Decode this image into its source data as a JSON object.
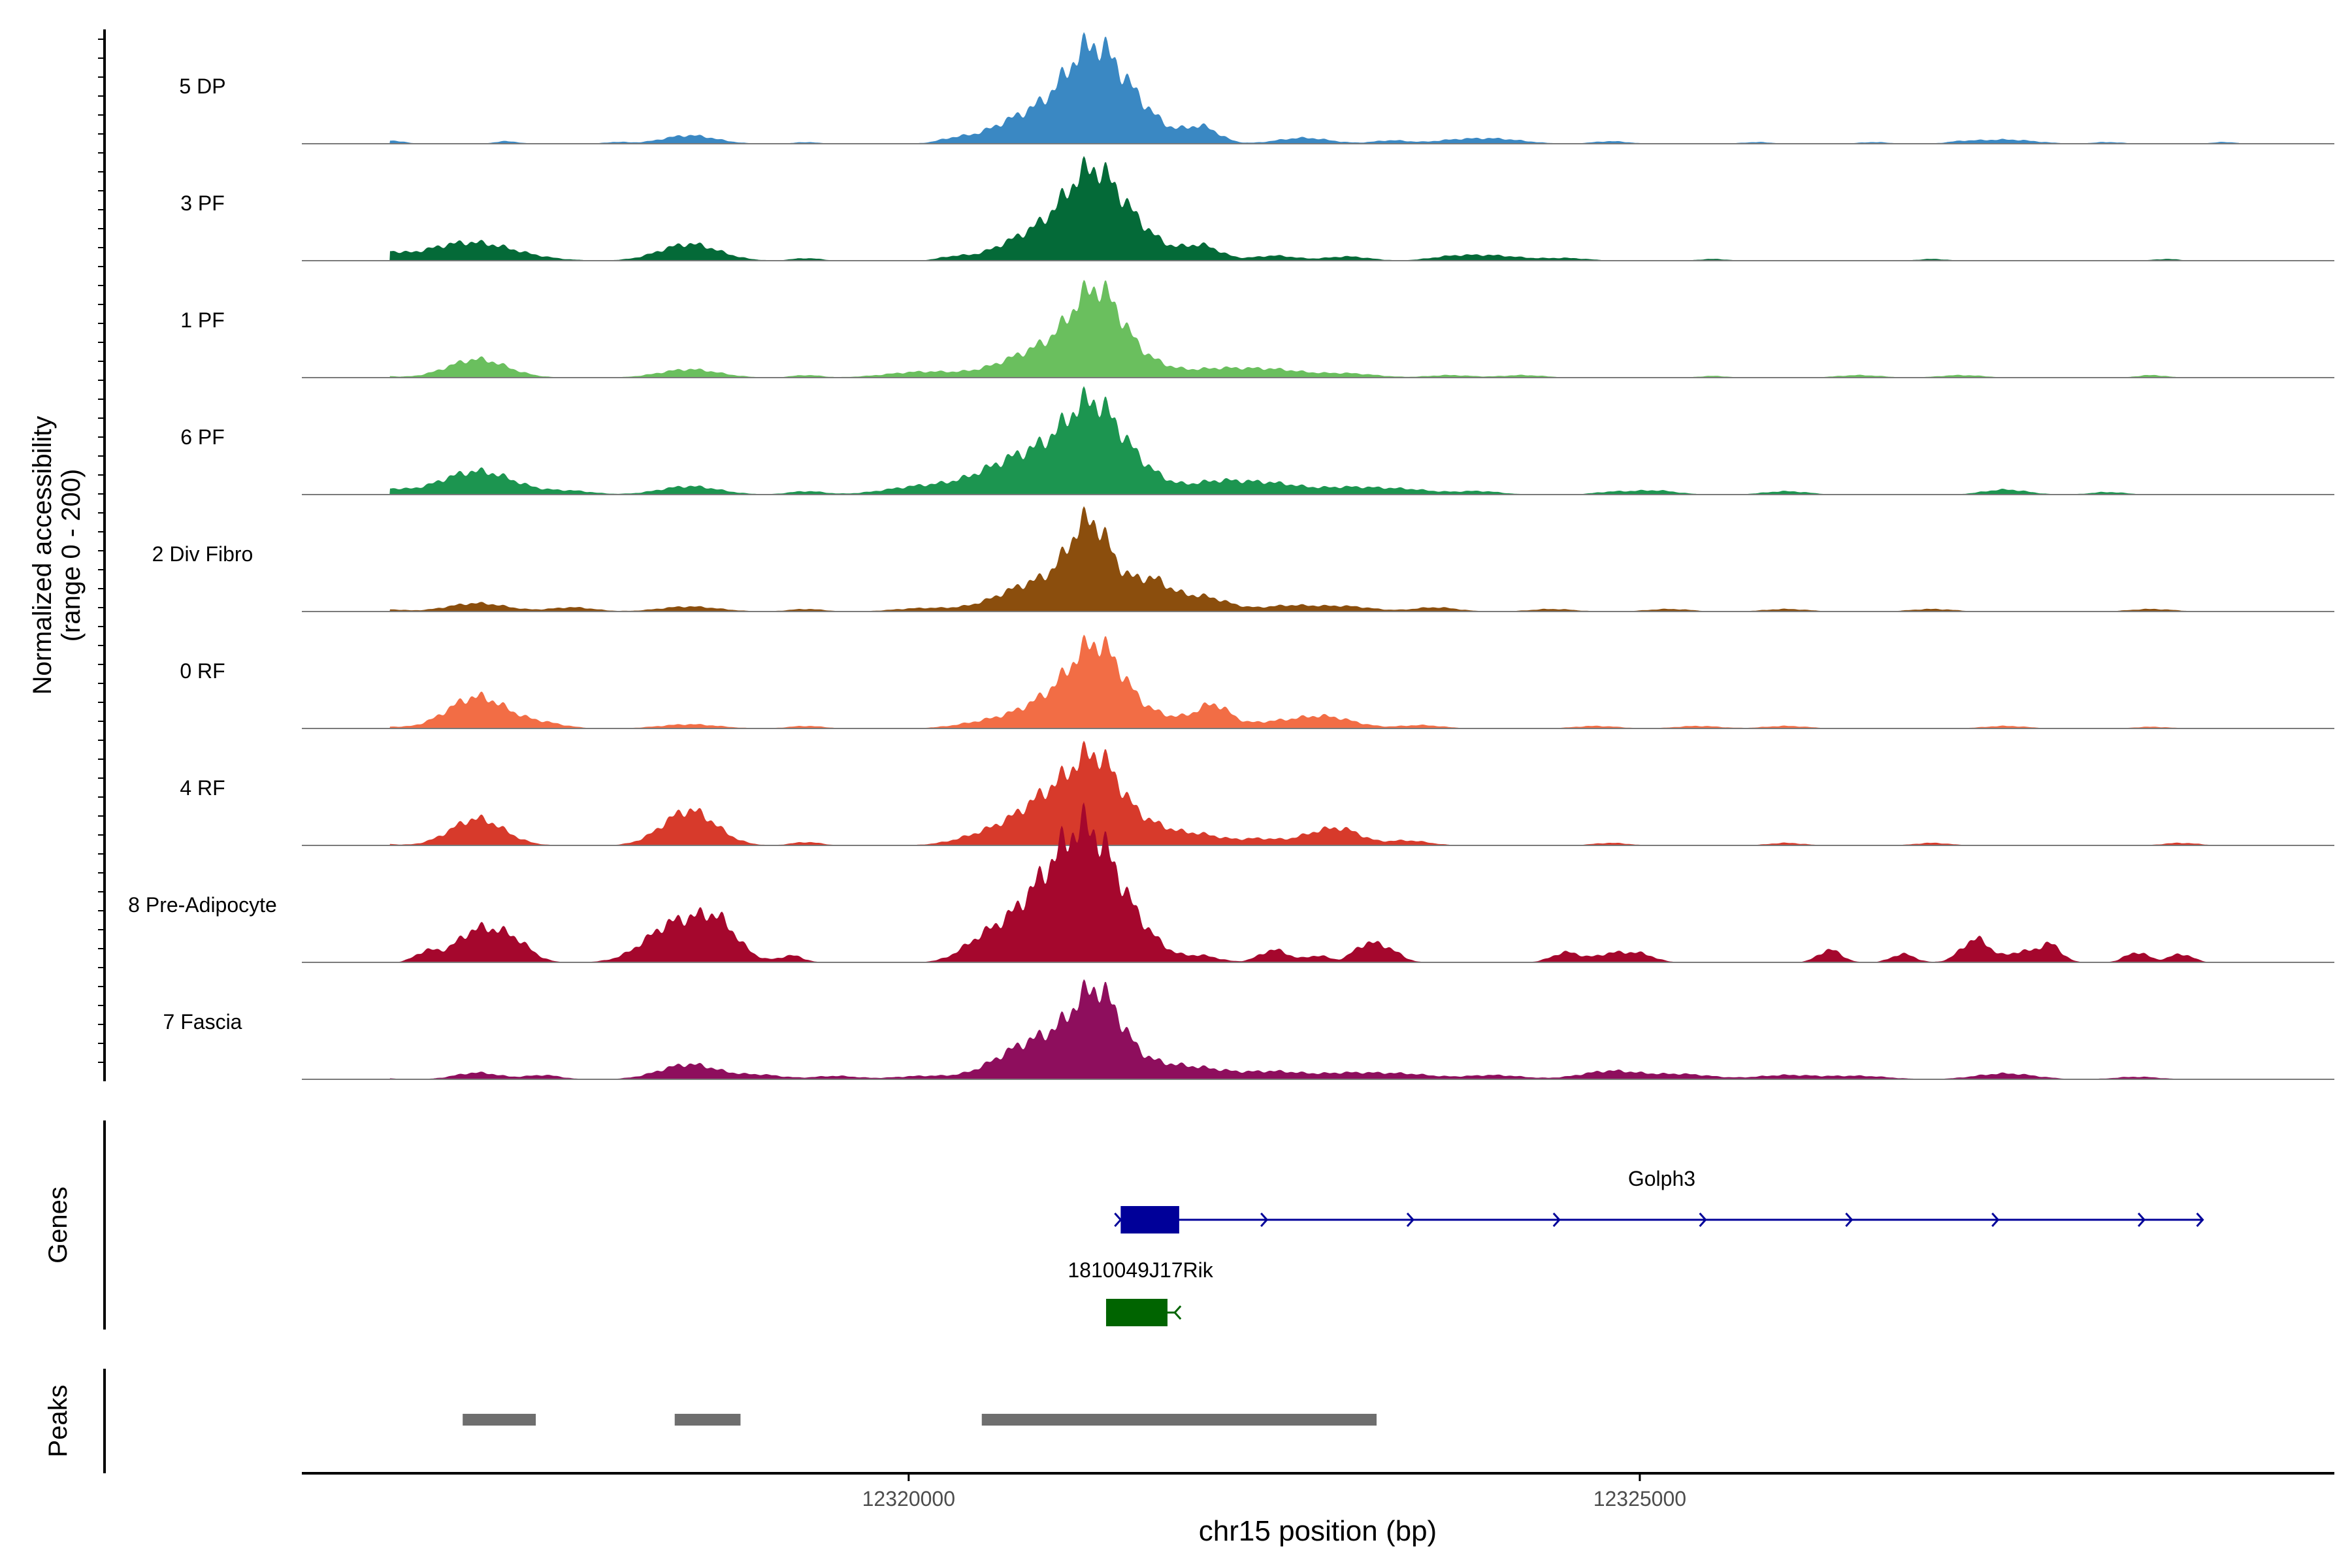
{
  "chart_data": {
    "type": "area",
    "title": "",
    "coverage_ylabel": "Normalized accessibility",
    "coverage_range": "(range 0 - 200)",
    "y_range": [
      0,
      200
    ],
    "xlabel": "chr15 position (bp)",
    "x_range": [
      12315850,
      12329750
    ],
    "x_ticks": [
      12320000,
      12325000
    ],
    "x_tick_labels": [
      "12320000",
      "12325000"
    ],
    "tracks": [
      {
        "name": "5 DP",
        "color": "#3A88C3",
        "peaks": [
          [
            12316450,
            4,
            90
          ],
          [
            12317250,
            3,
            80
          ],
          [
            12318000,
            2,
            80
          ],
          [
            12318500,
            10,
            180
          ],
          [
            12319300,
            2,
            80
          ],
          [
            12320300,
            4,
            100
          ],
          [
            12320700,
            7,
            220
          ],
          [
            12321000,
            38,
            300
          ],
          [
            12321280,
            90,
            180
          ],
          [
            12321600,
            28,
            160
          ],
          [
            12322000,
            20,
            120
          ],
          [
            12322700,
            7,
            180
          ],
          [
            12323700,
            3,
            150
          ],
          [
            12324000,
            6,
            200
          ],
          [
            12323300,
            4,
            120
          ],
          [
            12324800,
            3,
            120
          ],
          [
            12325800,
            2,
            100
          ],
          [
            12326600,
            2,
            100
          ],
          [
            12327200,
            2,
            100
          ],
          [
            12327500,
            5,
            200
          ],
          [
            12328200,
            2,
            100
          ],
          [
            12329000,
            2,
            90
          ]
        ]
      },
      {
        "name": "3 PF",
        "color": "#046A38",
        "peaks": [
          [
            12316350,
            12,
            120
          ],
          [
            12317000,
            22,
            300
          ],
          [
            12318500,
            20,
            200
          ],
          [
            12319300,
            3,
            100
          ],
          [
            12320300,
            4,
            100
          ],
          [
            12320700,
            8,
            200
          ],
          [
            12321000,
            35,
            250
          ],
          [
            12321280,
            88,
            180
          ],
          [
            12321600,
            25,
            160
          ],
          [
            12322000,
            18,
            130
          ],
          [
            12322500,
            6,
            150
          ],
          [
            12323000,
            5,
            150
          ],
          [
            12323700,
            4,
            150
          ],
          [
            12324000,
            6,
            200
          ],
          [
            12324500,
            3,
            150
          ],
          [
            12325500,
            2,
            100
          ],
          [
            12327000,
            2,
            100
          ],
          [
            12328600,
            2,
            90
          ]
        ]
      },
      {
        "name": "1 PF",
        "color": "#6ABF5E",
        "peaks": [
          [
            12316350,
            3,
            100
          ],
          [
            12317050,
            22,
            200
          ],
          [
            12318500,
            10,
            200
          ],
          [
            12319300,
            3,
            100
          ],
          [
            12320100,
            7,
            250
          ],
          [
            12320700,
            8,
            220
          ],
          [
            12321000,
            32,
            250
          ],
          [
            12321300,
            90,
            170
          ],
          [
            12321650,
            14,
            160
          ],
          [
            12322100,
            10,
            200
          ],
          [
            12322500,
            9,
            200
          ],
          [
            12323000,
            5,
            200
          ],
          [
            12323700,
            3,
            150
          ],
          [
            12324200,
            3,
            150
          ],
          [
            12325500,
            2,
            100
          ],
          [
            12326500,
            3,
            150
          ],
          [
            12327200,
            3,
            150
          ],
          [
            12328500,
            3,
            100
          ]
        ]
      },
      {
        "name": "6 PF",
        "color": "#1C9550",
        "peaks": [
          [
            12316350,
            8,
            150
          ],
          [
            12317050,
            28,
            250
          ],
          [
            12317700,
            4,
            150
          ],
          [
            12318500,
            10,
            200
          ],
          [
            12319300,
            4,
            120
          ],
          [
            12320100,
            10,
            250
          ],
          [
            12320500,
            10,
            200
          ],
          [
            12320700,
            20,
            200
          ],
          [
            12321000,
            42,
            230
          ],
          [
            12321280,
            88,
            180
          ],
          [
            12321600,
            22,
            160
          ],
          [
            12322100,
            15,
            200
          ],
          [
            12322500,
            12,
            200
          ],
          [
            12323000,
            8,
            200
          ],
          [
            12323400,
            6,
            200
          ],
          [
            12323900,
            4,
            150
          ],
          [
            12324800,
            3,
            120
          ],
          [
            12325100,
            5,
            150
          ],
          [
            12326000,
            4,
            150
          ],
          [
            12327500,
            6,
            150
          ],
          [
            12328200,
            3,
            120
          ]
        ]
      },
      {
        "name": "2 Div Fibro",
        "color": "#8B4E0D",
        "peaks": [
          [
            12316400,
            3,
            120
          ],
          [
            12317050,
            10,
            200
          ],
          [
            12317700,
            5,
            150
          ],
          [
            12318500,
            6,
            200
          ],
          [
            12319300,
            3,
            120
          ],
          [
            12320100,
            4,
            200
          ],
          [
            12320600,
            6,
            200
          ],
          [
            12320900,
            32,
            220
          ],
          [
            12321250,
            100,
            150
          ],
          [
            12321650,
            35,
            130
          ],
          [
            12322000,
            18,
            180
          ],
          [
            12322600,
            7,
            180
          ],
          [
            12323000,
            6,
            180
          ],
          [
            12323600,
            5,
            150
          ],
          [
            12324400,
            3,
            150
          ],
          [
            12325200,
            3,
            150
          ],
          [
            12326000,
            3,
            150
          ],
          [
            12327000,
            3,
            150
          ],
          [
            12328500,
            3,
            150
          ]
        ]
      },
      {
        "name": "0 RF",
        "color": "#F26D45",
        "peaks": [
          [
            12316350,
            3,
            120
          ],
          [
            12317050,
            38,
            200
          ],
          [
            12317500,
            6,
            150
          ],
          [
            12318500,
            5,
            200
          ],
          [
            12319300,
            3,
            120
          ],
          [
            12320500,
            5,
            200
          ],
          [
            12320700,
            6,
            200
          ],
          [
            12321000,
            32,
            200
          ],
          [
            12321300,
            90,
            170
          ],
          [
            12321650,
            14,
            160
          ],
          [
            12322000,
            12,
            150
          ],
          [
            12322100,
            18,
            100
          ],
          [
            12322500,
            8,
            200
          ],
          [
            12322800,
            10,
            150
          ],
          [
            12323000,
            6,
            150
          ],
          [
            12323500,
            4,
            150
          ],
          [
            12324700,
            3,
            150
          ],
          [
            12325400,
            3,
            150
          ],
          [
            12326000,
            3,
            150
          ],
          [
            12327500,
            3,
            150
          ],
          [
            12328500,
            2,
            120
          ]
        ]
      },
      {
        "name": "4 RF",
        "color": "#D73A2B",
        "peaks": [
          [
            12316350,
            3,
            100
          ],
          [
            12317050,
            32,
            180
          ],
          [
            12318500,
            42,
            180
          ],
          [
            12319300,
            4,
            100
          ],
          [
            12320500,
            8,
            200
          ],
          [
            12320700,
            12,
            200
          ],
          [
            12321000,
            55,
            200
          ],
          [
            12321300,
            88,
            160
          ],
          [
            12321650,
            22,
            160
          ],
          [
            12322000,
            12,
            150
          ],
          [
            12322400,
            8,
            150
          ],
          [
            12322800,
            14,
            140
          ],
          [
            12323000,
            14,
            120
          ],
          [
            12323400,
            6,
            150
          ],
          [
            12324800,
            3,
            120
          ],
          [
            12326000,
            3,
            120
          ],
          [
            12327000,
            3,
            120
          ],
          [
            12328700,
            3,
            120
          ]
        ]
      },
      {
        "name": "8 Pre-Adipocyte",
        "color": "#A5072D",
        "peaks": [
          [
            12316700,
            12,
            80
          ],
          [
            12317050,
            38,
            150
          ],
          [
            12317300,
            22,
            120
          ],
          [
            12318400,
            45,
            200
          ],
          [
            12318700,
            22,
            120
          ],
          [
            12318700,
            18,
            170
          ],
          [
            12319200,
            8,
            80
          ],
          [
            12320500,
            20,
            150
          ],
          [
            12320800,
            40,
            200
          ],
          [
            12321000,
            62,
            180
          ],
          [
            12321200,
            95,
            150
          ],
          [
            12321400,
            70,
            150
          ],
          [
            12321650,
            20,
            130
          ],
          [
            12322000,
            8,
            120
          ],
          [
            12322500,
            15,
            100
          ],
          [
            12322800,
            8,
            80
          ],
          [
            12323100,
            15,
            80
          ],
          [
            12323250,
            18,
            100
          ],
          [
            12324500,
            12,
            100
          ],
          [
            12324800,
            10,
            100
          ],
          [
            12325000,
            10,
            100
          ],
          [
            12326300,
            15,
            80
          ],
          [
            12326800,
            10,
            80
          ],
          [
            12327300,
            28,
            100
          ],
          [
            12327600,
            12,
            80
          ],
          [
            12327800,
            22,
            80
          ],
          [
            12328400,
            12,
            80
          ],
          [
            12328700,
            10,
            80
          ]
        ]
      },
      {
        "name": "7 Fascia",
        "color": "#8E0E5D",
        "peaks": [
          [
            12316300,
            3,
            120
          ],
          [
            12317050,
            8,
            150
          ],
          [
            12317500,
            5,
            120
          ],
          [
            12318500,
            18,
            200
          ],
          [
            12319000,
            5,
            150
          ],
          [
            12319500,
            4,
            150
          ],
          [
            12320100,
            4,
            200
          ],
          [
            12320700,
            20,
            200
          ],
          [
            12321000,
            40,
            220
          ],
          [
            12321300,
            90,
            160
          ],
          [
            12321650,
            15,
            180
          ],
          [
            12322000,
            12,
            200
          ],
          [
            12322500,
            9,
            200
          ],
          [
            12323000,
            7,
            200
          ],
          [
            12323400,
            6,
            200
          ],
          [
            12324000,
            5,
            200
          ],
          [
            12324800,
            10,
            200
          ],
          [
            12325300,
            6,
            200
          ],
          [
            12326000,
            5,
            200
          ],
          [
            12326500,
            4,
            200
          ],
          [
            12327500,
            7,
            200
          ],
          [
            12328400,
            3,
            150
          ]
        ]
      }
    ],
    "gene_track_label": "Genes",
    "genes": [
      {
        "name": "Golph3",
        "start": 12321450,
        "end": 12328850,
        "strand": "+",
        "exon": [
          12321450,
          12321850
        ],
        "color": "#000099"
      },
      {
        "name": "1810049J17Rik",
        "start": 12321350,
        "end": 12321820,
        "strand": "-",
        "exon": [
          12321350,
          12321770
        ],
        "color": "#006400"
      }
    ],
    "peak_track_label": "Peaks",
    "peak_regions": [
      [
        12316950,
        12317450
      ],
      [
        12318400,
        12318850
      ],
      [
        12320500,
        12323200
      ]
    ],
    "peak_color": "#6E6E6E"
  }
}
